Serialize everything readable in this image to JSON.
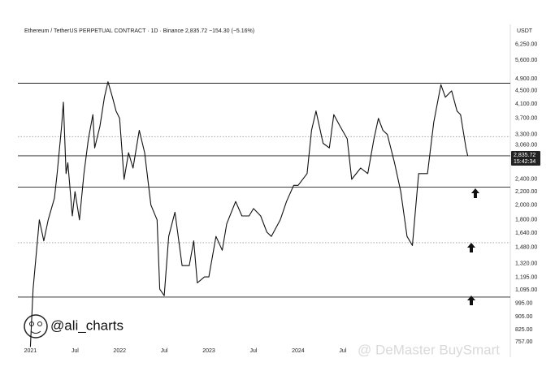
{
  "chart_data": {
    "type": "line",
    "title": "Ethereum / TetherUS PERPETUAL CONTRACT · 1D · Binance  2,835.72  −154.30 (−5.16%)",
    "y_axis_unit": "USDT",
    "handle": "@ali_charts",
    "watermark": "@ DeMaster BuySmart",
    "color": "#111111",
    "log_scale": true,
    "x": [
      2021.0,
      2021.03,
      2021.1,
      2021.15,
      2021.2,
      2021.27,
      2021.3,
      2021.35,
      2021.37,
      2021.4,
      2021.42,
      2021.47,
      2021.5,
      2021.55,
      2021.6,
      2021.65,
      2021.7,
      2021.72,
      2021.78,
      2021.83,
      2021.87,
      2021.92,
      2021.96,
      2022.0,
      2022.05,
      2022.1,
      2022.15,
      2022.22,
      2022.28,
      2022.35,
      2022.42,
      2022.45,
      2022.5,
      2022.55,
      2022.62,
      2022.7,
      2022.78,
      2022.83,
      2022.87,
      2022.95,
      2023.0,
      2023.08,
      2023.15,
      2023.2,
      2023.3,
      2023.37,
      2023.45,
      2023.5,
      2023.58,
      2023.65,
      2023.7,
      2023.8,
      2023.87,
      2023.95,
      2024.0,
      2024.1,
      2024.15,
      2024.2,
      2024.28,
      2024.35,
      2024.4,
      2024.47,
      2024.55,
      2024.6,
      2024.7,
      2024.78,
      2024.85,
      2024.9,
      2024.95,
      2025.0,
      2025.08,
      2025.15,
      2025.22,
      2025.28,
      2025.35,
      2025.45,
      2025.52,
      2025.6,
      2025.65,
      2025.72,
      2025.78,
      2025.82,
      2025.88,
      2025.9
    ],
    "values": [
      730,
      1100,
      1800,
      1550,
      1800,
      2100,
      2500,
      3500,
      4150,
      2500,
      2700,
      1850,
      2200,
      1800,
      2500,
      3200,
      3800,
      3000,
      3500,
      4300,
      4800,
      4300,
      3900,
      3700,
      2400,
      2900,
      2600,
      3400,
      2900,
      2000,
      1800,
      1100,
      1050,
      1600,
      1900,
      1300,
      1300,
      1550,
      1150,
      1200,
      1200,
      1600,
      1450,
      1750,
      2050,
      1850,
      1850,
      1950,
      1850,
      1650,
      1600,
      1800,
      2050,
      2300,
      2300,
      2500,
      3400,
      3900,
      3100,
      3000,
      3800,
      3500,
      3200,
      2400,
      2600,
      2500,
      3200,
      3700,
      3400,
      3300,
      2700,
      2200,
      1600,
      1500,
      2500,
      2500,
      3600,
      4700,
      4300,
      4500,
      3900,
      3800,
      3000,
      2836
    ],
    "xlim": [
      2020.86,
      2026.35
    ],
    "xticks": [
      {
        "value": 2021,
        "label": "2021"
      },
      {
        "value": 2021.5,
        "label": "Jul"
      },
      {
        "value": 2022,
        "label": "2022"
      },
      {
        "value": 2022.5,
        "label": "Jul"
      },
      {
        "value": 2023,
        "label": "2023"
      },
      {
        "value": 2023.5,
        "label": "Jul"
      },
      {
        "value": 2024,
        "label": "2024"
      },
      {
        "value": 2024.5,
        "label": "Jul"
      }
    ],
    "ylim": [
      727,
      7010
    ],
    "yticks": [
      {
        "value": 6250,
        "label": "6,250.00"
      },
      {
        "value": 5600,
        "label": "5,600.00"
      },
      {
        "value": 4900,
        "label": "4,900.00"
      },
      {
        "value": 4500,
        "label": "4,500.00"
      },
      {
        "value": 4100,
        "label": "4,100.00"
      },
      {
        "value": 3700,
        "label": "3,700.00"
      },
      {
        "value": 3300,
        "label": "3,300.00"
      },
      {
        "value": 3060,
        "label": "3,060.00"
      },
      {
        "value": 2400,
        "label": "2,400.00"
      },
      {
        "value": 2200,
        "label": "2,200.00"
      },
      {
        "value": 2000,
        "label": "2,000.00"
      },
      {
        "value": 1800,
        "label": "1,800.00"
      },
      {
        "value": 1640,
        "label": "1,640.00"
      },
      {
        "value": 1480,
        "label": "1,480.00"
      },
      {
        "value": 1320,
        "label": "1,320.00"
      },
      {
        "value": 1195,
        "label": "1,195.00"
      },
      {
        "value": 1095,
        "label": "1,095.00"
      },
      {
        "value": 995,
        "label": "995.00"
      },
      {
        "value": 905,
        "label": "905.00"
      },
      {
        "value": 825,
        "label": "825.00"
      },
      {
        "value": 757,
        "label": "757.00"
      }
    ],
    "levels": [
      {
        "value": 4750,
        "style": "solid"
      },
      {
        "value": 3250,
        "style": "dotted"
      },
      {
        "value": 2836,
        "style": "solid"
      },
      {
        "value": 2270,
        "style": "solid"
      },
      {
        "value": 1530,
        "style": "dotted"
      },
      {
        "value": 1040,
        "style": "solid"
      }
    ],
    "last_price": {
      "value": 2835.72,
      "label": "2,835.72"
    },
    "countdown": "15:42:34"
  }
}
